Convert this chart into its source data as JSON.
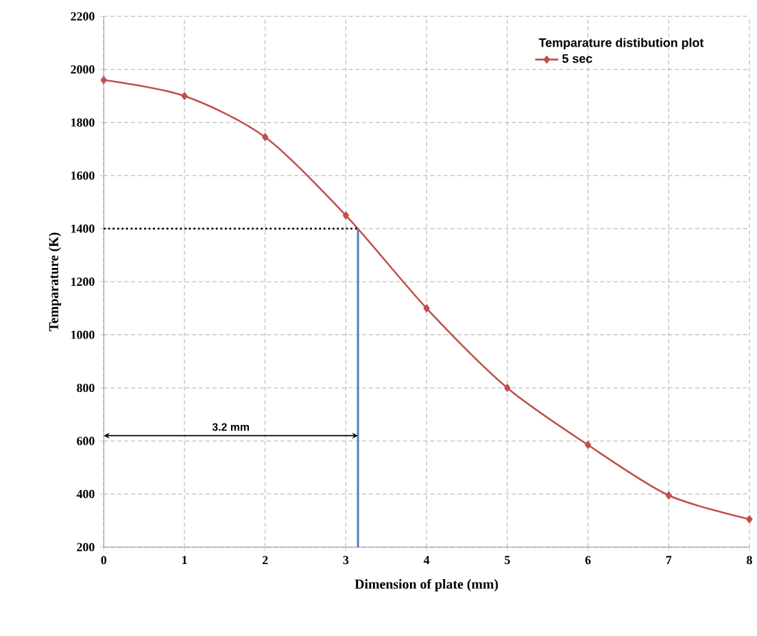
{
  "chart_data": {
    "type": "line",
    "xlabel": "Dimension of plate (mm)",
    "ylabel": "Temparature (K)",
    "legend_title": "Temparature  distibution  plot",
    "x": [
      0,
      1,
      2,
      3,
      4,
      5,
      6,
      7,
      8
    ],
    "series": [
      {
        "name": "5 sec",
        "color": "#c0504d",
        "values": [
          1960,
          1900,
          1745,
          1450,
          1100,
          800,
          585,
          395,
          305
        ],
        "marker": "diamond",
        "line_style": "solid"
      }
    ],
    "ref_lines": [
      {
        "axis": "y",
        "value": 1400,
        "color": "#000000",
        "line_style": "dotted"
      },
      {
        "axis": "x",
        "value": 3.15,
        "color": "#4a7ebb",
        "line_style": "solid"
      }
    ],
    "annotations": [
      "3.2 mm"
    ],
    "xlim": [
      0,
      8
    ],
    "ylim": [
      200,
      2200
    ],
    "xticks": [
      0,
      1,
      2,
      3,
      4,
      5,
      6,
      7,
      8
    ],
    "yticks": [
      200,
      400,
      600,
      800,
      1000,
      1200,
      1400,
      1600,
      1800,
      2000,
      2200
    ],
    "grid": true,
    "legend": "top right"
  }
}
